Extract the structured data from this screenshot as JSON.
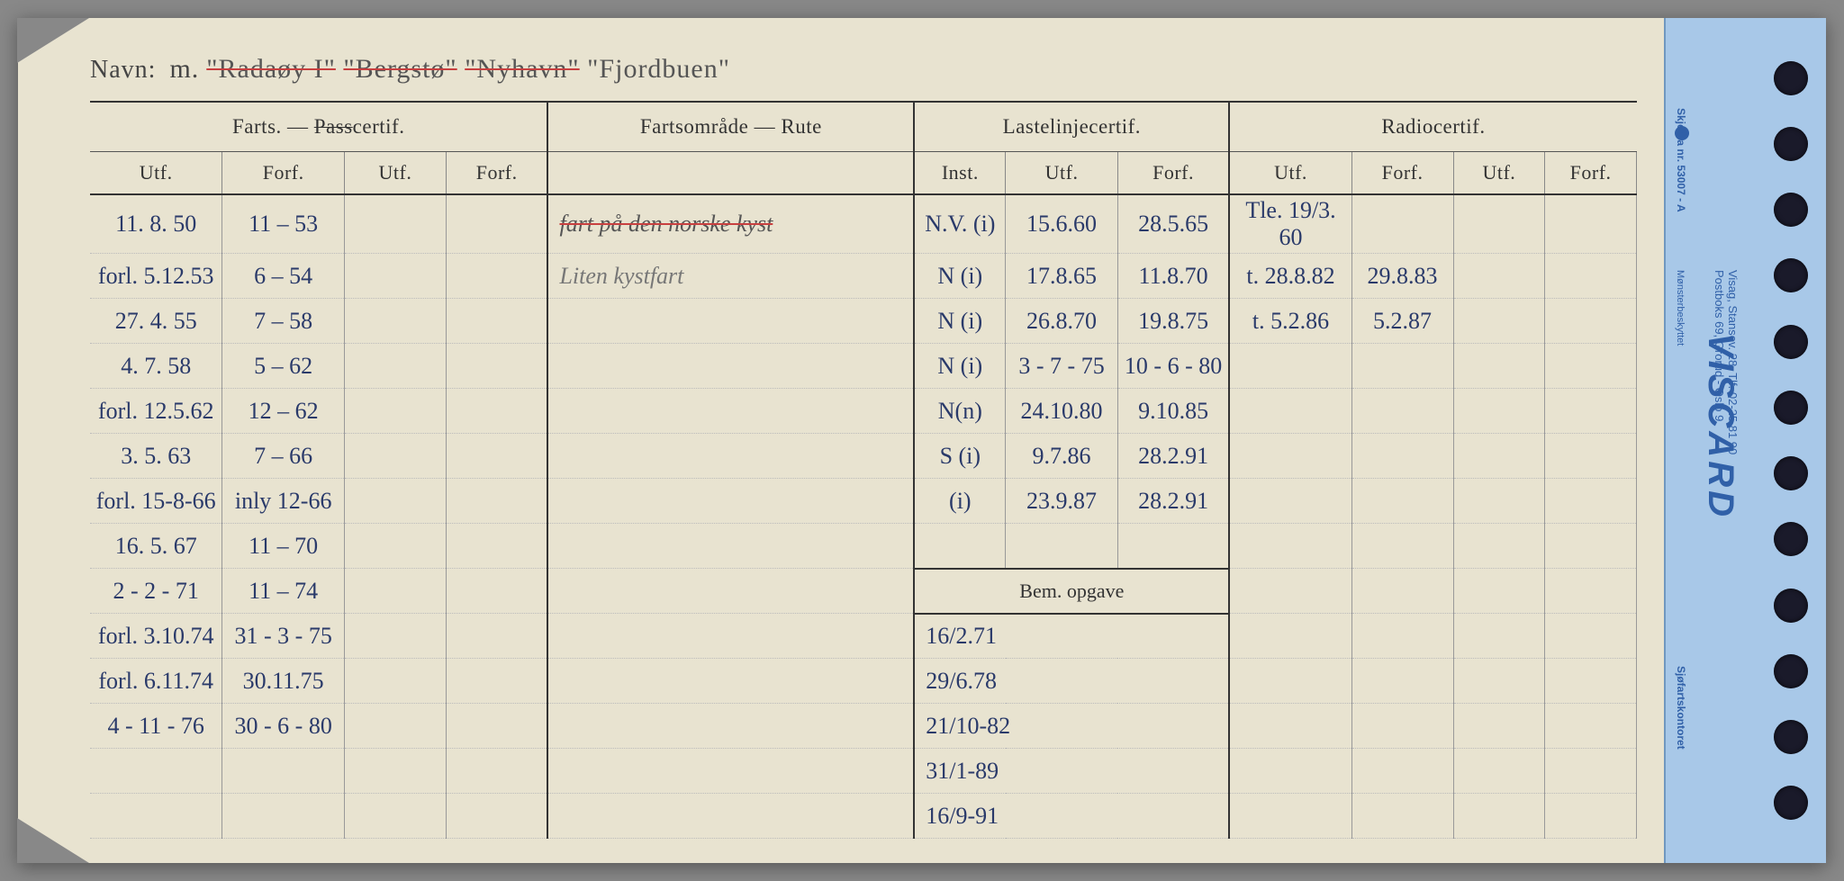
{
  "navn": {
    "label": "Navn:",
    "prefix": "m.",
    "struck": [
      "\"Radaøy I\"",
      "\"Bergstø\"",
      "\"Nyhavn\""
    ],
    "current": "\"Fjordbuen\""
  },
  "headers": {
    "farts_group": "Farts. — ",
    "pass_struck": "Pass",
    "certif_suffix": "certif.",
    "fartsomrade": "Fartsområde — Rute",
    "lastelinje": "Lastelinjecertif.",
    "radio": "Radiocertif.",
    "utf": "Utf.",
    "forf": "Forf.",
    "inst": "Inst.",
    "bem": "Bem. opgave"
  },
  "farts_rows": [
    {
      "utf": "11. 8. 50",
      "forf": "11 – 53"
    },
    {
      "utf": "forl. 5.12.53",
      "forf": "6 – 54"
    },
    {
      "utf": "27. 4. 55",
      "forf": "7 – 58"
    },
    {
      "utf": "4. 7. 58",
      "forf": "5 – 62"
    },
    {
      "utf": "forl. 12.5.62",
      "forf": "12 – 62"
    },
    {
      "utf": "3. 5. 63",
      "forf": "7 – 66"
    },
    {
      "utf": "forl. 15-8-66",
      "forf": "inly 12-66"
    },
    {
      "utf": "16. 5. 67",
      "forf": "11 – 70"
    },
    {
      "utf": "2 - 2 - 71",
      "forf": "11 – 74"
    },
    {
      "utf": "forl. 3.10.74",
      "forf": "31 - 3 - 75"
    },
    {
      "utf": "forl. 6.11.74",
      "forf": "30.11.75"
    },
    {
      "utf": "4 - 11 - 76",
      "forf": "30 - 6 - 80"
    }
  ],
  "rute_rows": [
    "fart på den norske kyst",
    "Liten kystfart"
  ],
  "laste_rows": [
    {
      "inst": "N.V. (i)",
      "utf": "15.6.60",
      "forf": "28.5.65"
    },
    {
      "inst": "N (i)",
      "utf": "17.8.65",
      "forf": "11.8.70"
    },
    {
      "inst": "N (i)",
      "utf": "26.8.70",
      "forf": "19.8.75"
    },
    {
      "inst": "N (i)",
      "utf": "3 - 7 - 75",
      "forf": "10 - 6 - 80"
    },
    {
      "inst": "N(n)",
      "utf": "24.10.80",
      "forf": "9.10.85"
    },
    {
      "inst": "S (i)",
      "utf": "9.7.86",
      "forf": "28.2.91"
    },
    {
      "inst": "(i)",
      "utf": "23.9.87",
      "forf": "28.2.91"
    }
  ],
  "radio_rows": [
    {
      "utf": "Tle. 19/3. 60",
      "forf": ""
    },
    {
      "utf": "t. 28.8.82",
      "forf": "29.8.83"
    },
    {
      "utf": "t. 5.2.86",
      "forf": "5.2.87"
    }
  ],
  "bem_rows": [
    "16/2.71",
    "29/6.78",
    "21/10-82",
    "31/1-89",
    "16/9-91"
  ],
  "divider": {
    "brand": "VISCARD",
    "address": "Visag, Stansev. 28, Tlf. 02-25 81 90\nPostboks 69, Grorud - Oslo 9",
    "skjema": "Skjema nr. 53007 - A",
    "monster": "Mønsterbeskyttet",
    "sjofart": "Sjøfartskontoret"
  },
  "colors": {
    "paper": "#e8e3d0",
    "divider": "#a8c8e8",
    "ink_blue": "#2a3a6a",
    "ink_pencil": "#777",
    "strike_red": "#c84040",
    "print_blue": "#3060a8"
  },
  "col_widths": {
    "farts_utf": 130,
    "farts_forf": 120,
    "farts_utf2": 100,
    "farts_forf2": 100,
    "rute": 360,
    "laste_inst": 90,
    "laste_utf": 110,
    "laste_forf": 110,
    "radio_utf": 110,
    "radio_forf": 100,
    "radio_utf2": 90,
    "radio_forf2": 90
  }
}
